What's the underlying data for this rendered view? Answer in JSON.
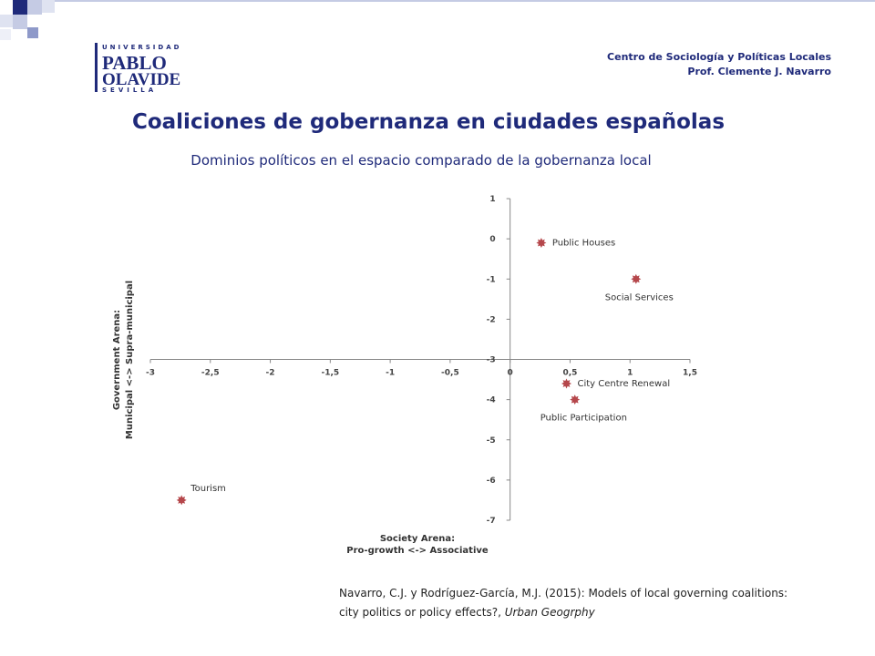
{
  "header": {
    "line1": "Centro de Sociología y Políticas Locales",
    "line2": "Prof. Clemente J. Navarro"
  },
  "logo": {
    "top": "UNIVERSIDAD",
    "line1": "PABLO",
    "line2": "OLAVIDE",
    "bottom": "SEVILLA"
  },
  "title": "Coaliciones de gobernanza en ciudades españolas",
  "subtitle": "Dominios políticos en el espacio comparado de la gobernanza local",
  "chart_data": {
    "type": "scatter",
    "x": [
      0.26,
      1.05,
      0.47,
      0.54,
      -2.74
    ],
    "values": [
      -0.1,
      -1,
      -3.6,
      -4,
      -6.5
    ],
    "point_labels": [
      "Public Houses",
      "Social Services",
      "City Centre Renewal",
      "Public Participation",
      "Tourism"
    ],
    "color": "#b5474b",
    "xlim": [
      -3,
      1.5
    ],
    "xticks": [
      -3,
      {
        "value": -2.5,
        "label": "-2,5"
      },
      -2,
      {
        "value": -1.5,
        "label": "-1,5"
      },
      -1,
      {
        "value": -0.5,
        "label": "-0,5"
      },
      0,
      {
        "value": 0.5,
        "label": "0,5"
      },
      1,
      {
        "value": 1.5,
        "label": "1,5"
      }
    ],
    "ylim": [
      -7,
      1
    ],
    "yticks": [
      1,
      0,
      -1,
      -2,
      -3,
      -4,
      -5,
      -6,
      -7
    ],
    "x_axis_crosses": -3,
    "xlabel": [
      "Society Arena:",
      "Pro-growth <-> Associative"
    ],
    "ylabel": [
      "Government Arena:",
      "Municipal <-> Supra-municipal"
    ]
  },
  "citation": {
    "text": "Navarro, C.J. y Rodríguez-García, M.J. (2015): Models of local governing coalitions: city politics or policy effects?,",
    "journal": "Urban Geogrphy"
  }
}
